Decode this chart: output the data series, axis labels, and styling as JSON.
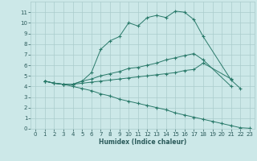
{
  "xlabel": "Humidex (Indice chaleur)",
  "background_color": "#cce8e8",
  "grid_color": "#aacccc",
  "line_color": "#2a7a6a",
  "xlim": [
    -0.5,
    23.5
  ],
  "ylim": [
    0,
    12
  ],
  "xticks": [
    0,
    1,
    2,
    3,
    4,
    5,
    6,
    7,
    8,
    9,
    10,
    11,
    12,
    13,
    14,
    15,
    16,
    17,
    18,
    19,
    20,
    21,
    22,
    23
  ],
  "yticks": [
    0,
    1,
    2,
    3,
    4,
    5,
    6,
    7,
    8,
    9,
    10,
    11
  ],
  "line1_x": [
    1,
    2,
    3,
    4,
    5,
    6,
    7,
    8,
    9,
    10,
    11,
    12,
    13,
    14,
    15,
    16,
    17,
    18,
    21,
    22
  ],
  "line1_y": [
    4.5,
    4.3,
    4.2,
    4.2,
    4.5,
    5.3,
    7.5,
    8.3,
    8.7,
    10.0,
    9.7,
    10.5,
    10.7,
    10.5,
    11.1,
    11.0,
    10.3,
    8.7,
    4.6,
    3.8
  ],
  "line2_x": [
    1,
    2,
    3,
    4,
    5,
    6,
    7,
    8,
    9,
    10,
    11,
    12,
    13,
    14,
    15,
    16,
    17,
    18,
    21,
    22
  ],
  "line2_y": [
    4.5,
    4.3,
    4.2,
    4.2,
    4.5,
    4.7,
    5.0,
    5.2,
    5.4,
    5.7,
    5.8,
    6.0,
    6.2,
    6.5,
    6.7,
    6.9,
    7.1,
    6.5,
    4.0,
    null
  ],
  "line3_x": [
    1,
    2,
    3,
    4,
    5,
    6,
    7,
    8,
    9,
    10,
    11,
    12,
    13,
    14,
    15,
    16,
    17,
    18,
    21,
    22
  ],
  "line3_y": [
    4.5,
    4.3,
    4.2,
    4.2,
    4.3,
    4.4,
    4.5,
    4.6,
    4.7,
    4.8,
    4.9,
    5.0,
    5.1,
    5.2,
    5.3,
    5.5,
    5.6,
    6.2,
    4.7,
    null
  ],
  "line4_x": [
    1,
    2,
    3,
    4,
    5,
    6,
    7,
    8,
    9,
    10,
    11,
    12,
    13,
    14,
    15,
    16,
    17,
    18,
    19,
    20,
    21,
    22,
    23
  ],
  "line4_y": [
    4.5,
    4.3,
    4.2,
    4.0,
    3.8,
    3.6,
    3.3,
    3.1,
    2.8,
    2.6,
    2.4,
    2.2,
    2.0,
    1.8,
    1.5,
    1.3,
    1.1,
    0.9,
    0.7,
    0.5,
    0.3,
    0.1,
    0.05
  ]
}
